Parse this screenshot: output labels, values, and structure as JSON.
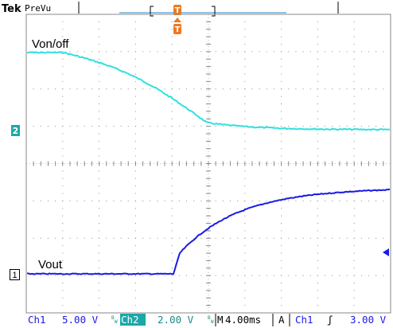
{
  "topbar": {
    "brand": "Tek",
    "mode": "PreVu",
    "trigger_glyph": "T"
  },
  "waveforms": {
    "ch2_label": "Von/off",
    "ch1_label": "Vout"
  },
  "markers": {
    "ch2": "2",
    "ch1": "1"
  },
  "readout": {
    "ch1_name": "Ch1",
    "ch1_scale": "5.00 V",
    "bw_mark": "B",
    "ch2_name": "Ch2",
    "ch2_scale": "2.00 V",
    "time_prefix": "M",
    "time_scale": "4.00ms",
    "acq_mode": "A",
    "trig_source": "Ch1",
    "trig_slope_glyph": "ʃ",
    "trig_level": "3.00 V"
  },
  "colors": {
    "ch1": "#1a1ae6",
    "ch2": "#30e0e0",
    "trigger": "#f07820",
    "grid": "#8a8a8a"
  }
}
